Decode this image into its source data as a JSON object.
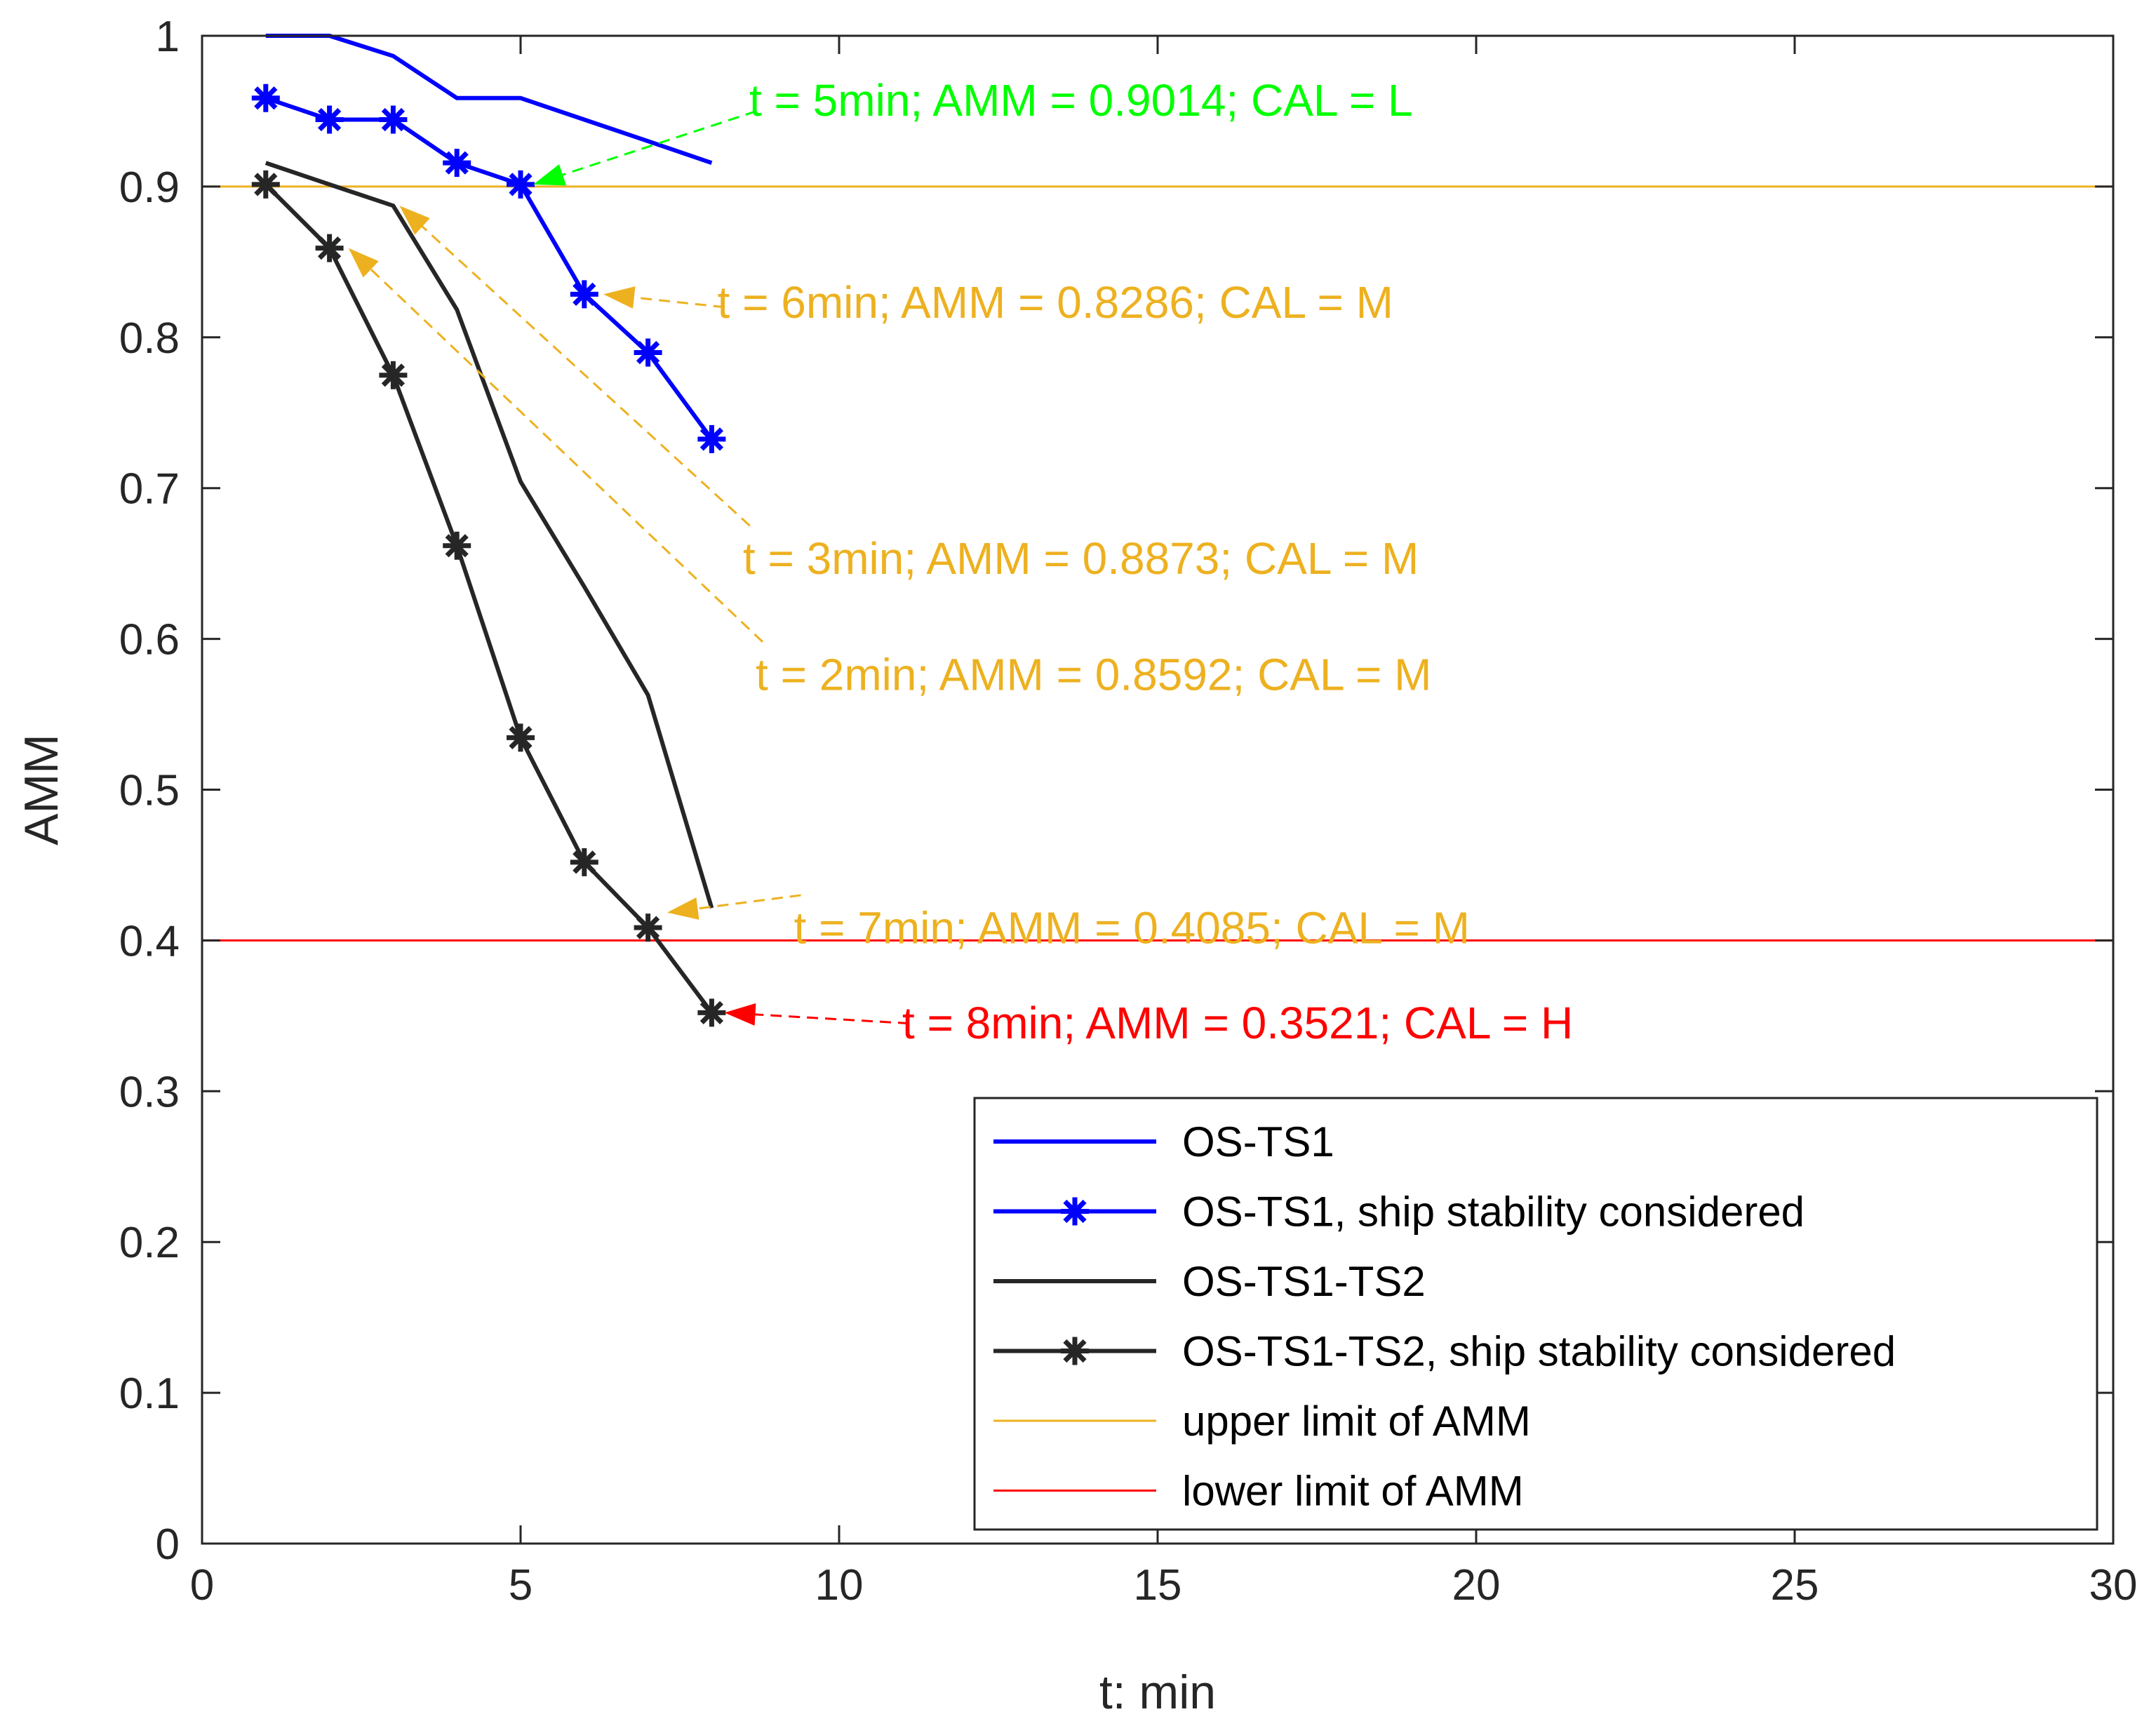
{
  "chart_data": {
    "type": "line",
    "title": "",
    "xlabel": "t: min",
    "ylabel": "AMM",
    "xlim": [
      0,
      30
    ],
    "ylim": [
      0,
      1
    ],
    "xticks": [
      0,
      5,
      10,
      15,
      20,
      25,
      30
    ],
    "yticks": [
      0,
      0.1,
      0.2,
      0.3,
      0.4,
      0.5,
      0.6,
      0.7,
      0.8,
      0.9,
      1
    ],
    "x_tick_labels": [
      "0",
      "5",
      "10",
      "15",
      "20",
      "25",
      "30"
    ],
    "y_tick_labels": [
      "0",
      "0.1",
      "0.2",
      "0.3",
      "0.4",
      "0.5",
      "0.6",
      "0.7",
      "0.8",
      "0.9",
      "1"
    ],
    "legend_position": "bottom-right",
    "series": [
      {
        "name": "OS-TS1",
        "color": "#0000ff",
        "marker": "none",
        "x": [
          1,
          2,
          3,
          4,
          5,
          6,
          7,
          8
        ],
        "y": [
          1.0,
          1.0,
          0.9866,
          0.9587,
          0.9587,
          0.9444,
          0.9301,
          0.9157
        ]
      },
      {
        "name": "OS-TS1, ship stability considered",
        "color": "#0000ff",
        "marker": "asterisk",
        "x": [
          1,
          2,
          3,
          4,
          5,
          6,
          7,
          8
        ],
        "y": [
          0.9587,
          0.9444,
          0.9444,
          0.9157,
          0.9014,
          0.8286,
          0.7899,
          0.7325
        ]
      },
      {
        "name": "OS-TS1-TS2",
        "color": "#262626",
        "marker": "none",
        "x": [
          1,
          2,
          3,
          4,
          5,
          6,
          7,
          8
        ],
        "y": [
          0.9157,
          0.9014,
          0.8873,
          0.8184,
          0.7043,
          0.6346,
          0.5628,
          0.4215
        ]
      },
      {
        "name": "OS-TS1-TS2, ship stability considered",
        "color": "#262626",
        "marker": "asterisk",
        "x": [
          1,
          2,
          3,
          4,
          5,
          6,
          7,
          8
        ],
        "y": [
          0.9014,
          0.8592,
          0.7749,
          0.6618,
          0.5345,
          0.4519,
          0.4085,
          0.3521
        ]
      },
      {
        "name": "upper limit of AMM",
        "color": "#edb120",
        "marker": "none",
        "thin": true,
        "x": [
          0,
          30
        ],
        "y": [
          0.9,
          0.9
        ]
      },
      {
        "name": "lower limit of AMM",
        "color": "#ff0000",
        "marker": "none",
        "thin": true,
        "x": [
          0,
          30
        ],
        "y": [
          0.4,
          0.4
        ]
      }
    ],
    "annotations": [
      {
        "text": "t = 5min; AMM = 0.9014; CAL = L",
        "color": "#00ff00",
        "text_at": [
          8.7,
          0.947
        ],
        "arrow_from": [
          8.7,
          0.95
        ],
        "arrow_to": [
          5.2,
          0.9014
        ]
      },
      {
        "text": "t = 6min; AMM = 0.8286; CAL = M",
        "color": "#edb120",
        "text_at": [
          8.2,
          0.813
        ],
        "arrow_from": [
          8.2,
          0.82
        ],
        "arrow_to": [
          6.3,
          0.8286
        ]
      },
      {
        "text": "t = 3min; AMM = 0.8873; CAL = M",
        "color": "#edb120",
        "text_at": [
          8.6,
          0.643
        ],
        "arrow_from": [
          8.6,
          0.675
        ],
        "arrow_to": [
          3.1,
          0.8873
        ]
      },
      {
        "text": "t = 2min; AMM = 0.8592; CAL = M",
        "color": "#edb120",
        "text_at": [
          8.8,
          0.566
        ],
        "arrow_from": [
          8.8,
          0.598
        ],
        "arrow_to": [
          2.3,
          0.8592
        ]
      },
      {
        "text": "t = 7min; AMM = 0.4085; CAL = M",
        "color": "#edb120",
        "text_at": [
          9.4,
          0.398
        ],
        "arrow_from": [
          9.4,
          0.43
        ],
        "arrow_to": [
          7.3,
          0.4185
        ]
      },
      {
        "text": "t = 8min; AMM = 0.3521; CAL = H",
        "color": "#ff0000",
        "text_at": [
          11.1,
          0.335
        ],
        "arrow_from": [
          11.1,
          0.345
        ],
        "arrow_to": [
          8.2,
          0.3521
        ]
      }
    ]
  }
}
